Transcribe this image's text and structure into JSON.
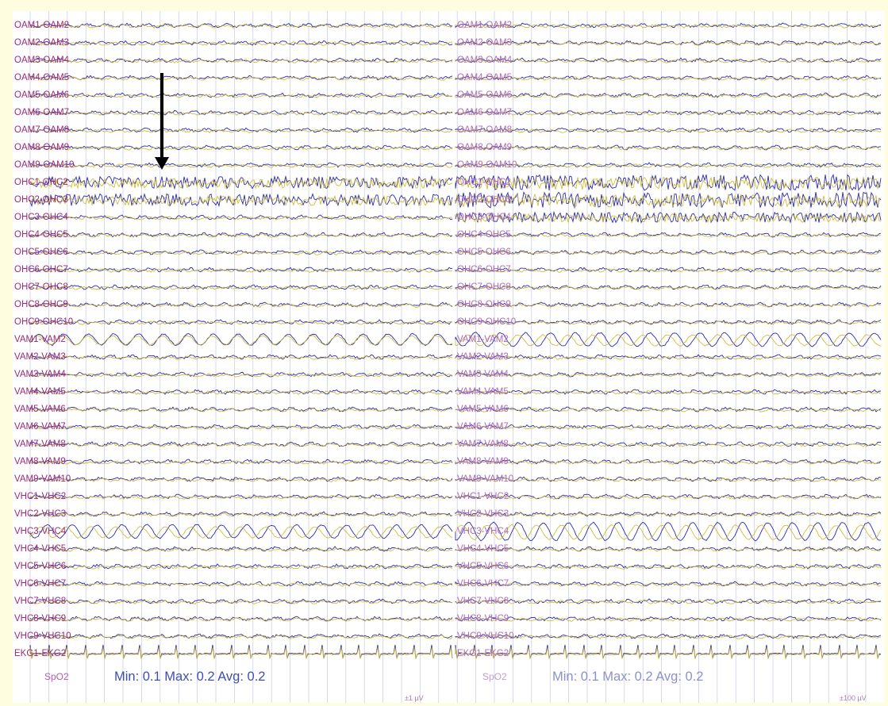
{
  "left_channels": [
    "OAM1-OAM2",
    "OAM2-OAM3",
    "OAM3-OAM4",
    "OAM4-OAM5",
    "OAM5-OAM6",
    "OAM6-OAM7",
    "OAM7-OAM8",
    "OAM8-OAM9",
    "OAM9-OAM10",
    "OHC1-OHC2",
    "OHC2-OHC3",
    "OHC3-OHC4",
    "OHC4-OHC5",
    "OHC5-OHC6",
    "OHC6-OHC7",
    "OHC7-OHC8",
    "OHC8-OHC9",
    "OHC9-OHC10",
    "VAM1-VAM2",
    "VAM2-VAM3",
    "VAM3-VAM4",
    "VAM4-VAM5",
    "VAM5-VAM6",
    "VAM6-VAM7",
    "VAM7-VAM8",
    "VAM8-VAM9",
    "VAM9-VAM10",
    "VHC1-VHC2",
    "VHC2-VHC3",
    "VHC3-VHC4",
    "VHC4-VHC5",
    "VHC5-VHC6",
    "VHC6-VHC7",
    "VHC7-VHC8",
    "VHC8-VHC9",
    "VHC9-VHC10",
    "EKG1-EKG2"
  ],
  "right_channels": [
    "OAM1-OAM2",
    "OAM2-OAM3",
    "OAM3-OAM4",
    "OAM4-OAM5",
    "OAM5-OAM6",
    "OAM6-OAM7",
    "OAM7-OAM8",
    "OAM8-OAM9",
    "OAM9-OAM10",
    "OHC1-OHC2",
    "OHC2-OHC3",
    "OHC3-OHC4",
    "OHC4-OHC5",
    "OHC5-OHC6",
    "OHC6-OHC7",
    "OHC7-OHC8",
    "OHC8-OHC9",
    "OHC9-OHC10",
    "VAM1-VAM2",
    "VAM2-VAM3",
    "VAM3-VAM4",
    "VAM4-VAM5",
    "VAM5-VAM6",
    "VAM6-VAM7",
    "VAM7-VAM8",
    "VAM8-VAM9",
    "VAM9-VAM10",
    "VHC1-VHC2",
    "VHC2-VHC3",
    "VHC3-VHC4",
    "VHC4-VHC5",
    "VHC5-VHC6",
    "VHC6-VHC7",
    "VHC7-VHC8",
    "VHC8-VHC9",
    "VHC9-VHC10",
    "EKG1-EKG2"
  ],
  "left_panel": {
    "spo2_label": "SpO2",
    "stats_text": "Min:  0.1 Max:  0.2 Avg:  0.2",
    "scale_label": "±1 µV"
  },
  "right_panel": {
    "spo2_label": "SpO2",
    "stats_text": "Min:  0.1 Max:  0.2 Avg:  0.2",
    "scale_label": "±100 µV"
  },
  "colors": {
    "background": "#fffde0",
    "paper": "#ffffff",
    "trace_primary": "#2a2ab8",
    "trace_secondary": "#c9b820",
    "grid": "#c8cbe0",
    "label": "#9a2a7a"
  },
  "arrow_icon": "down-arrow-icon"
}
